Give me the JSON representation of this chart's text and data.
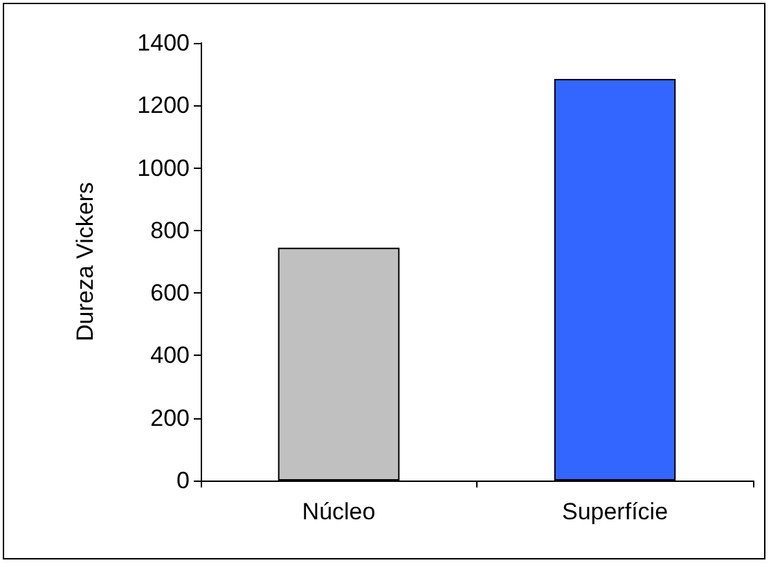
{
  "chart_data": {
    "type": "bar",
    "ylabel": "Dureza Vickers",
    "categories": [
      "Núcleo",
      "Superfície"
    ],
    "values": [
      745,
      1285
    ],
    "colors": [
      "#c0c0c0",
      "#3366ff"
    ],
    "ylim": [
      0,
      1400
    ],
    "yticks": [
      0,
      200,
      400,
      600,
      800,
      1000,
      1200,
      1400
    ],
    "grid": false
  }
}
